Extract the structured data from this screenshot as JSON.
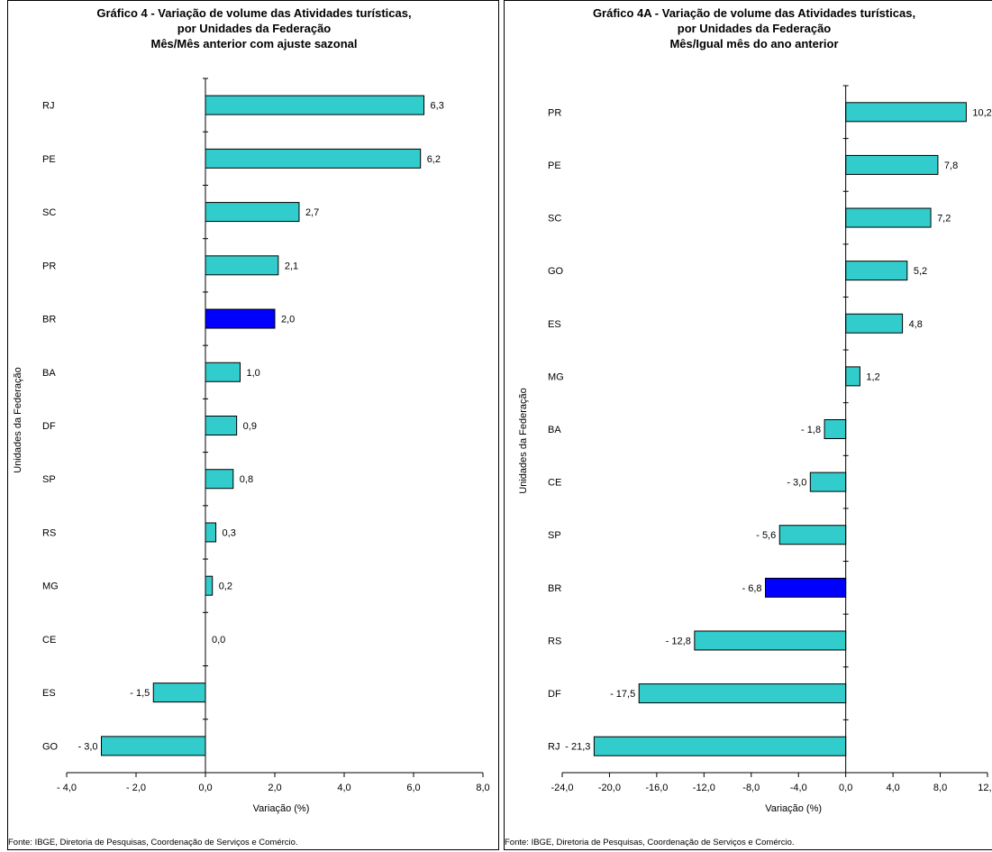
{
  "chart_data": [
    {
      "type": "bar",
      "orientation": "horizontal",
      "title": [
        "Gráfico 4 - Variação de volume das Atividades turísticas,",
        "por Unidades da Federação",
        "Mês/Mês anterior com ajuste sazonal"
      ],
      "xlabel": "Variação (%)",
      "ylabel": "Unidades da Federação",
      "xlim": [
        -4,
        8
      ],
      "xticks": [
        -4,
        -2,
        0,
        2,
        4,
        6,
        8
      ],
      "xtick_labels": [
        "- 4,0",
        "- 2,0",
        "0,0",
        "2,0",
        "4,0",
        "6,0",
        "8,0"
      ],
      "categories": [
        "RJ",
        "PE",
        "SC",
        "PR",
        "BR",
        "BA",
        "DF",
        "SP",
        "RS",
        "MG",
        "CE",
        "ES",
        "GO"
      ],
      "values": [
        6.3,
        6.2,
        2.7,
        2.1,
        2.0,
        1.0,
        0.9,
        0.8,
        0.3,
        0.2,
        0.0,
        -1.5,
        -3.0
      ],
      "value_labels": [
        "6,3",
        "6,2",
        "2,7",
        "2,1",
        "2,0",
        "1,0",
        "0,9",
        "0,8",
        "0,3",
        "0,2",
        "0,0",
        "- 1,5",
        "- 3,0"
      ],
      "highlight": "BR",
      "bar_color": "#33cccc",
      "highlight_color": "#0000ff",
      "grid": false,
      "source": "Fonte: IBGE, Diretoria de Pesquisas, Coordenação de Serviços e Comércio."
    },
    {
      "type": "bar",
      "orientation": "horizontal",
      "title": [
        "Gráfico 4A - Variação de volume das Atividades turísticas,",
        "por Unidades da Federação",
        "Mês/Igual mês do ano anterior"
      ],
      "xlabel": "Variação (%)",
      "ylabel": "Unidades da Federação",
      "xlim": [
        -24,
        12
      ],
      "xticks": [
        -24,
        -20,
        -16,
        -12,
        -8,
        -4,
        0,
        4,
        8,
        12
      ],
      "xtick_labels": [
        "-24,0",
        "-20,0",
        "-16,0",
        "-12,0",
        "-8,0",
        "-4,0",
        "0,0",
        "4,0",
        "8,0",
        "12,0"
      ],
      "categories": [
        "PR",
        "PE",
        "SC",
        "GO",
        "ES",
        "MG",
        "BA",
        "CE",
        "SP",
        "BR",
        "RS",
        "DF",
        "RJ"
      ],
      "values": [
        10.2,
        7.8,
        7.2,
        5.2,
        4.8,
        1.2,
        -1.8,
        -3.0,
        -5.6,
        -6.8,
        -12.8,
        -17.5,
        -21.3
      ],
      "value_labels": [
        "10,2",
        "7,8",
        "7,2",
        "5,2",
        "4,8",
        "1,2",
        "- 1,8",
        "- 3,0",
        "- 5,6",
        "- 6,8",
        "- 12,8",
        "- 17,5",
        "- 21,3"
      ],
      "highlight": "BR",
      "bar_color": "#33cccc",
      "highlight_color": "#0000ff",
      "grid": false,
      "source": "Fonte: IBGE, Diretoria de Pesquisas, Coordenação de Serviços e Comércio."
    }
  ]
}
